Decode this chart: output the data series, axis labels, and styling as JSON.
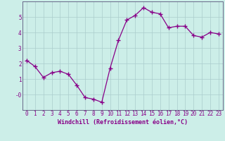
{
  "x": [
    0,
    1,
    2,
    3,
    4,
    5,
    6,
    7,
    8,
    9,
    10,
    11,
    12,
    13,
    14,
    15,
    16,
    17,
    18,
    19,
    20,
    21,
    22,
    23
  ],
  "y": [
    2.2,
    1.8,
    1.1,
    1.4,
    1.5,
    1.3,
    0.6,
    -0.2,
    -0.3,
    -0.5,
    1.7,
    3.5,
    4.8,
    5.1,
    5.6,
    5.3,
    5.2,
    4.3,
    4.4,
    4.4,
    3.8,
    3.7,
    4.0,
    3.9
  ],
  "line_color": "#880088",
  "marker": "+",
  "marker_size": 4,
  "bg_color": "#cceee8",
  "grid_color": "#aacccc",
  "xlabel": "Windchill (Refroidissement éolien,°C)",
  "ylim": [
    -1.0,
    6.0
  ],
  "xlim": [
    -0.5,
    23.5
  ],
  "yticks": [
    0,
    1,
    2,
    3,
    4,
    5
  ],
  "ytick_labels": [
    "-0",
    "1",
    "2",
    "3",
    "4",
    "5"
  ],
  "xticks": [
    0,
    1,
    2,
    3,
    4,
    5,
    6,
    7,
    8,
    9,
    10,
    11,
    12,
    13,
    14,
    15,
    16,
    17,
    18,
    19,
    20,
    21,
    22,
    23
  ],
  "tick_fontsize": 5.5,
  "label_fontsize": 6.0,
  "spine_color": "#666688"
}
